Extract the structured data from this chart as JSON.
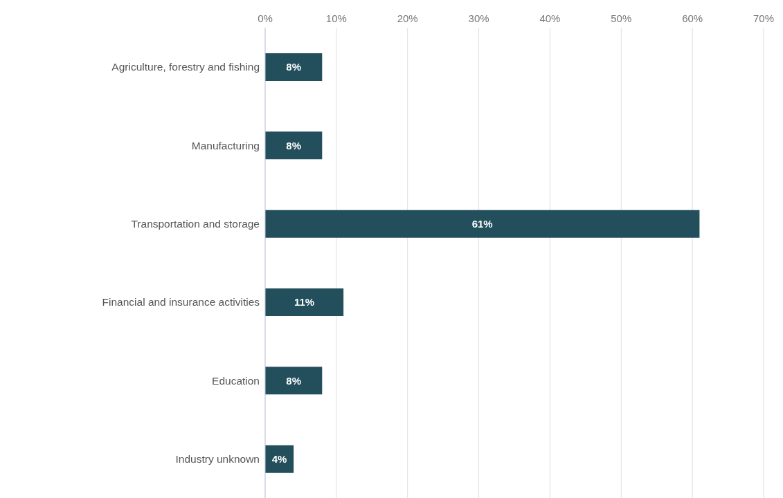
{
  "chart_data": {
    "type": "bar",
    "orientation": "horizontal",
    "categories": [
      "Agriculture, forestry and fishing",
      "Manufacturing",
      "Transportation and storage",
      "Financial and insurance activities",
      "Education",
      "Industry unknown"
    ],
    "values": [
      8,
      8,
      61,
      11,
      8,
      4
    ],
    "value_labels": [
      "8%",
      "8%",
      "61%",
      "11%",
      "8%",
      "4%"
    ],
    "color": "#234e5c",
    "xlim": [
      0,
      70
    ],
    "xticks": [
      {
        "value": 0,
        "label": "0%"
      },
      {
        "value": 10,
        "label": "10%"
      },
      {
        "value": 20,
        "label": "20%"
      },
      {
        "value": 30,
        "label": "30%"
      },
      {
        "value": 40,
        "label": "40%"
      },
      {
        "value": 50,
        "label": "50%"
      },
      {
        "value": 60,
        "label": "60%"
      },
      {
        "value": 70,
        "label": "70%"
      }
    ],
    "grid": "x"
  }
}
